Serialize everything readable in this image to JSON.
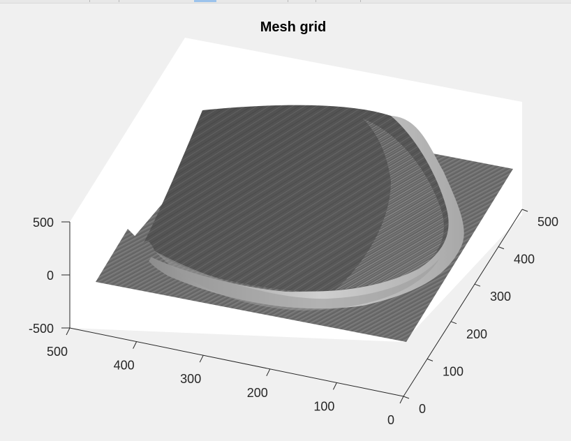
{
  "window": {
    "strip_colors": {
      "background": "#e8e8e8",
      "separator": "#b9b9b9",
      "active_tab": "#9cc3ec"
    }
  },
  "chart_data": {
    "type": "surface",
    "title": "Mesh grid",
    "xlabel": "",
    "ylabel": "",
    "zlabel": "",
    "xlim": [
      0,
      500
    ],
    "ylim": [
      0,
      500
    ],
    "zlim": [
      -500,
      500
    ],
    "x_ticks": [
      "0",
      "100",
      "200",
      "300",
      "400",
      "500"
    ],
    "y_ticks": [
      "0",
      "100",
      "200",
      "300",
      "400",
      "500"
    ],
    "z_ticks": [
      "-500",
      "0",
      "500"
    ],
    "grid": false,
    "colors": {
      "figure_background": "#f0f0f0",
      "axes_background": "#ffffff",
      "surface_dark": "#5a5a5a",
      "surface_light": "#d2d2d2",
      "axis_line": "#262626"
    },
    "surface_shape": "flat plane near z=0 with a raised dome-shaped region rising toward z≈500 at the back, shaded with dense diagonal streaks"
  }
}
